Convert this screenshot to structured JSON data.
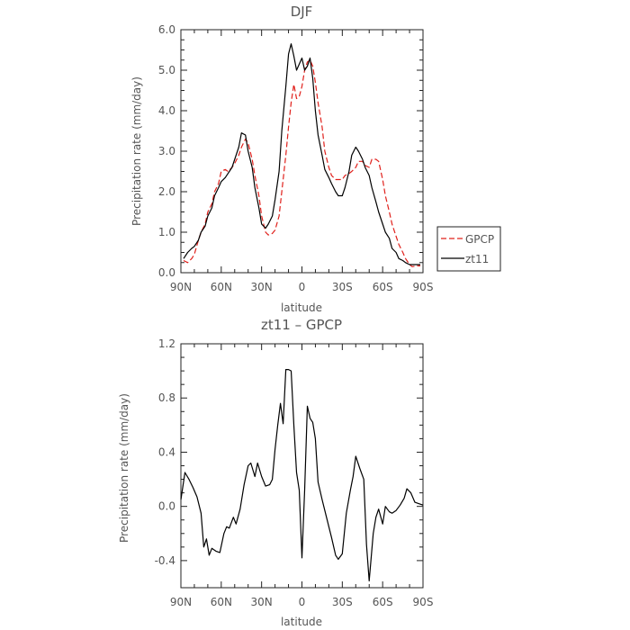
{
  "chart_data": [
    {
      "type": "line",
      "title": "DJF",
      "xlabel": "latitude",
      "ylabel": "Precipitation rate (mm/day)",
      "xlim": [
        90,
        -90
      ],
      "ylim": [
        0,
        6
      ],
      "xticks": [
        90,
        60,
        30,
        0,
        -30,
        -60,
        -90
      ],
      "xtick_labels": [
        "90N",
        "60N",
        "30N",
        "0",
        "30S",
        "60S",
        "90S"
      ],
      "yticks": [
        0,
        1,
        2,
        3,
        4,
        5,
        6
      ],
      "ytick_labels": [
        "0.0",
        "1.0",
        "2.0",
        "3.0",
        "4.0",
        "5.0",
        "6.0"
      ],
      "grid": false,
      "legend_position": "right",
      "series": [
        {
          "name": "GPCP",
          "color": "#e0201b",
          "dash": "dashed",
          "x": [
            88,
            85,
            82,
            80,
            77,
            75,
            72,
            70,
            67,
            65,
            62,
            60,
            57,
            55,
            52,
            50,
            47,
            45,
            42,
            40,
            37,
            35,
            32,
            30,
            27,
            25,
            22,
            20,
            17,
            15,
            12,
            10,
            8,
            6,
            4,
            2,
            0,
            -2,
            -4,
            -6,
            -8,
            -10,
            -12,
            -15,
            -17,
            -20,
            -22,
            -25,
            -27,
            -30,
            -32,
            -35,
            -37,
            -40,
            -42,
            -45,
            -47,
            -50,
            -52,
            -55,
            -57,
            -60,
            -62,
            -65,
            -67,
            -70,
            -72,
            -75,
            -77,
            -80,
            -82,
            -85,
            -87,
            -88
          ],
          "y": [
            0.3,
            0.25,
            0.35,
            0.45,
            0.8,
            1.0,
            1.2,
            1.5,
            1.7,
            2.0,
            2.2,
            2.5,
            2.55,
            2.5,
            2.6,
            2.7,
            2.9,
            3.1,
            3.3,
            3.2,
            2.8,
            2.4,
            1.9,
            1.4,
            1.0,
            0.93,
            0.97,
            1.05,
            1.4,
            2.0,
            2.9,
            3.6,
            4.2,
            4.65,
            4.3,
            4.35,
            4.6,
            5.0,
            5.2,
            5.25,
            5.1,
            4.7,
            4.2,
            3.6,
            3.0,
            2.6,
            2.4,
            2.3,
            2.3,
            2.3,
            2.4,
            2.45,
            2.5,
            2.6,
            2.75,
            2.75,
            2.65,
            2.6,
            2.8,
            2.8,
            2.75,
            2.3,
            1.9,
            1.5,
            1.2,
            0.9,
            0.7,
            0.5,
            0.35,
            0.2,
            0.15,
            0.17,
            0.17,
            0.17
          ]
        },
        {
          "name": "zt11",
          "color": "#000000",
          "dash": "solid",
          "x": [
            88,
            85,
            82,
            80,
            77,
            75,
            72,
            70,
            67,
            65,
            62,
            60,
            57,
            55,
            52,
            50,
            47,
            45,
            42,
            40,
            37,
            35,
            32,
            30,
            27,
            25,
            22,
            20,
            17,
            15,
            12,
            10,
            8,
            6,
            4,
            2,
            0,
            -2,
            -4,
            -6,
            -8,
            -10,
            -12,
            -15,
            -17,
            -20,
            -22,
            -25,
            -27,
            -30,
            -32,
            -35,
            -37,
            -40,
            -42,
            -45,
            -47,
            -50,
            -52,
            -55,
            -57,
            -60,
            -62,
            -65,
            -67,
            -70,
            -72,
            -75,
            -77,
            -80,
            -82,
            -85,
            -87,
            -88
          ],
          "y": [
            0.35,
            0.5,
            0.6,
            0.65,
            0.8,
            1.0,
            1.15,
            1.4,
            1.6,
            1.9,
            2.1,
            2.25,
            2.35,
            2.45,
            2.6,
            2.8,
            3.1,
            3.45,
            3.4,
            3.0,
            2.6,
            2.1,
            1.6,
            1.2,
            1.1,
            1.2,
            1.4,
            1.8,
            2.5,
            3.5,
            4.6,
            5.4,
            5.65,
            5.35,
            5.0,
            5.15,
            5.3,
            5.0,
            5.1,
            5.3,
            4.8,
            4.0,
            3.4,
            2.9,
            2.55,
            2.35,
            2.2,
            2.0,
            1.9,
            1.9,
            2.1,
            2.5,
            2.9,
            3.1,
            3.0,
            2.8,
            2.6,
            2.4,
            2.1,
            1.75,
            1.5,
            1.2,
            1.0,
            0.85,
            0.6,
            0.5,
            0.35,
            0.3,
            0.25,
            0.2,
            0.2,
            0.2,
            0.2,
            0.2
          ]
        }
      ]
    },
    {
      "type": "line",
      "title": "zt11 – GPCP",
      "xlabel": "latitude",
      "ylabel": "Precipitation rate (mm/day)",
      "xlim": [
        90,
        -90
      ],
      "ylim": [
        -0.6,
        1.2
      ],
      "xticks": [
        90,
        60,
        30,
        0,
        -30,
        -60,
        -90
      ],
      "xtick_labels": [
        "90N",
        "60N",
        "30N",
        "0",
        "30S",
        "60S",
        "90S"
      ],
      "yticks": [
        -0.4,
        0,
        0.4,
        0.8,
        1.2
      ],
      "ytick_labels": [
        "-0.4",
        "0.0",
        "0.4",
        "0.8",
        "1.2"
      ],
      "grid": false,
      "series": [
        {
          "color": "#000000",
          "dash": "solid",
          "x": [
            90,
            87,
            84,
            81,
            78,
            75,
            73,
            71,
            69,
            67,
            64,
            61,
            58,
            56,
            54,
            51,
            49,
            46,
            43,
            40,
            38,
            35,
            33,
            30,
            27,
            24,
            22,
            20,
            18,
            16,
            14,
            12,
            10,
            8,
            6,
            4,
            2,
            0,
            -2,
            -4,
            -6,
            -8,
            -10,
            -12,
            -15,
            -17,
            -20,
            -22,
            -25,
            -27,
            -30,
            -33,
            -36,
            -38,
            -40,
            -43,
            -46,
            -48,
            -50,
            -53,
            -55,
            -57,
            -60,
            -62,
            -65,
            -67,
            -70,
            -73,
            -76,
            -78,
            -81,
            -84,
            -87,
            -90
          ],
          "y": [
            0.05,
            0.25,
            0.2,
            0.14,
            0.07,
            -0.05,
            -0.3,
            -0.24,
            -0.36,
            -0.31,
            -0.33,
            -0.34,
            -0.2,
            -0.15,
            -0.16,
            -0.08,
            -0.13,
            -0.02,
            0.16,
            0.3,
            0.32,
            0.22,
            0.32,
            0.22,
            0.15,
            0.16,
            0.2,
            0.42,
            0.6,
            0.76,
            0.61,
            1.01,
            1.01,
            1.0,
            0.6,
            0.25,
            0.12,
            -0.38,
            0.12,
            0.74,
            0.65,
            0.62,
            0.5,
            0.18,
            0.05,
            -0.03,
            -0.15,
            -0.23,
            -0.36,
            -0.39,
            -0.35,
            -0.05,
            0.12,
            0.22,
            0.37,
            0.28,
            0.2,
            -0.28,
            -0.55,
            -0.2,
            -0.08,
            -0.02,
            -0.13,
            0.0,
            -0.04,
            -0.05,
            -0.03,
            0.01,
            0.06,
            0.13,
            0.1,
            0.03,
            0.02,
            0.01
          ]
        }
      ]
    }
  ]
}
